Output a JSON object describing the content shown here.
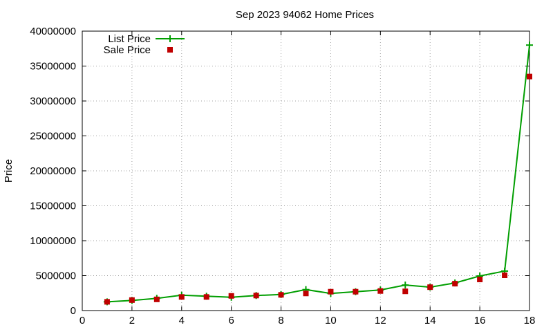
{
  "chart_data": {
    "type": "line",
    "title": "Sep 2023 94062 Home Prices",
    "xlabel": "",
    "ylabel": "Price",
    "xlim": [
      0,
      18
    ],
    "ylim": [
      0,
      40000000
    ],
    "x_ticks": [
      0,
      2,
      4,
      6,
      8,
      10,
      12,
      14,
      16,
      18
    ],
    "y_ticks": [
      0,
      5000000,
      10000000,
      15000000,
      20000000,
      25000000,
      30000000,
      35000000,
      40000000
    ],
    "grid": true,
    "legend": "top-left",
    "series": [
      {
        "name": "List Price",
        "style": "line+cross",
        "color": "#009e00",
        "x": [
          1,
          2,
          3,
          4,
          5,
          6,
          7,
          8,
          9,
          10,
          11,
          12,
          13,
          14,
          15,
          16,
          17,
          18
        ],
        "values": [
          1250000,
          1450000,
          1750000,
          2200000,
          2050000,
          1900000,
          2150000,
          2300000,
          3000000,
          2450000,
          2700000,
          2950000,
          3650000,
          3350000,
          3950000,
          4950000,
          5650000,
          38000000
        ]
      },
      {
        "name": "Sale Price",
        "style": "square",
        "color": "#c00000",
        "x": [
          1,
          2,
          3,
          4,
          5,
          6,
          7,
          8,
          9,
          10,
          11,
          12,
          13,
          14,
          15,
          16,
          17,
          18
        ],
        "values": [
          1250000,
          1500000,
          1600000,
          1950000,
          1950000,
          2100000,
          2150000,
          2250000,
          2450000,
          2700000,
          2700000,
          2800000,
          2750000,
          3350000,
          3850000,
          4450000,
          5050000,
          33500000
        ]
      }
    ]
  }
}
